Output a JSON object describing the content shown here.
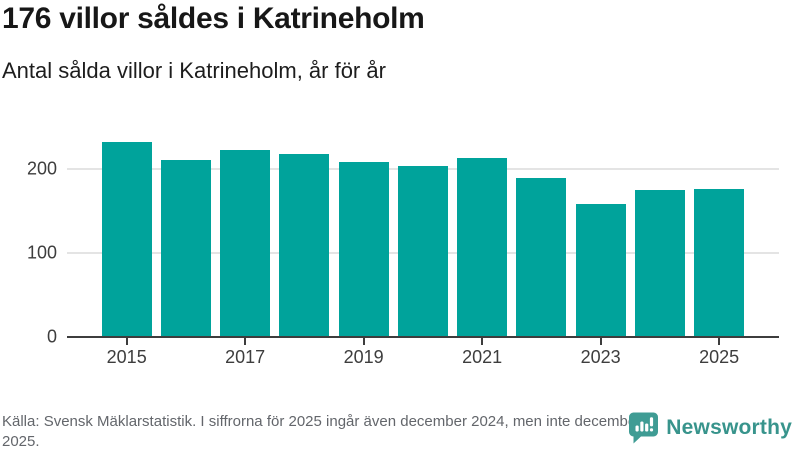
{
  "header": {
    "title": "176 villor såldes i Katrineholm",
    "subtitle": "Antal sålda villor i Katrineholm, år för år"
  },
  "footer": {
    "source_note": "Källa: Svensk Mäklarstatistik. I siffrorna för 2025 ingår även december 2024, men inte december 2025."
  },
  "branding": {
    "name": "Newsworthy",
    "icon": "newsworthy-speech-bubble-chart-icon",
    "icon_color": "#3f9c94",
    "text_color": "#38948c"
  },
  "colors": {
    "bar": "#00a39b",
    "axis": "#3d3d3d",
    "grid": "#e4e4e4",
    "title_text": "#171717",
    "footer_text": "#63666b"
  },
  "chart_data": {
    "type": "bar",
    "title": "176 villor såldes i Katrineholm",
    "subtitle": "Antal sålda villor i Katrineholm, år för år",
    "xlabel": "",
    "ylabel": "",
    "categories": [
      "2015",
      "2016",
      "2017",
      "2018",
      "2019",
      "2020",
      "2021",
      "2022",
      "2023",
      "2024",
      "2025"
    ],
    "values": [
      231,
      210,
      222,
      217,
      208,
      203,
      212,
      189,
      158,
      174,
      176
    ],
    "x_tick_labels": [
      "2015",
      "2017",
      "2019",
      "2021",
      "2023",
      "2025"
    ],
    "y_ticks": [
      0,
      100,
      200
    ],
    "ylim": [
      0,
      240
    ],
    "grid": "horizontal",
    "legend": "none",
    "bar_color": "#00a39b"
  }
}
